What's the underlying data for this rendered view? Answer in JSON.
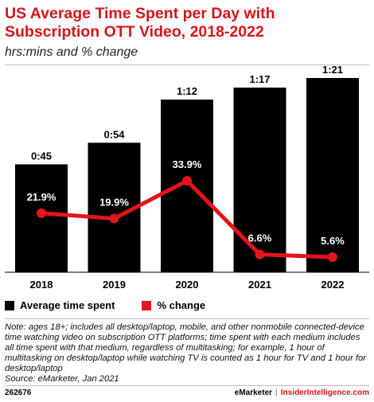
{
  "header": {
    "title": "US Average Time Spent per Day with Subscription OTT Video, 2018-2022",
    "subtitle": "hrs:mins and % change"
  },
  "chart_data": {
    "type": "bar",
    "categories": [
      "2018",
      "2019",
      "2020",
      "2021",
      "2022"
    ],
    "series": [
      {
        "name": "Average time spent",
        "type": "bar",
        "values": [
          45,
          54,
          72,
          77,
          81
        ],
        "labels": [
          "0:45",
          "0:54",
          "1:12",
          "1:17",
          "1:21"
        ],
        "color": "#000000"
      },
      {
        "name": "% change",
        "type": "line",
        "values": [
          21.9,
          19.9,
          33.9,
          6.6,
          5.6
        ],
        "labels": [
          "21.9%",
          "19.9%",
          "33.9%",
          "6.6%",
          "5.6%"
        ],
        "color": "#e3141b"
      }
    ],
    "ylim_bar": [
      0,
      81
    ],
    "ylim_pct": [
      0,
      72
    ],
    "grid": false,
    "legend_position": "bottom-left"
  },
  "note": "Note: ages 18+; includes all desktop/laptop, mobile, and other nonmobile connected-device time watching video on subscription OTT platforms; time spent with each medium includes all time spent with that medium, regardless of multitasking; for example, 1 hour of multitasking on desktop/laptop while watching TV is counted as 1 hour for TV and 1 hour for desktop/laptop",
  "source": "Source: eMarketer, Jan 2021",
  "footer": {
    "chart_id": "262676",
    "brand_left": "eMarketer",
    "brand_sep": "|",
    "brand_right": "InsiderIntelligence.com"
  }
}
